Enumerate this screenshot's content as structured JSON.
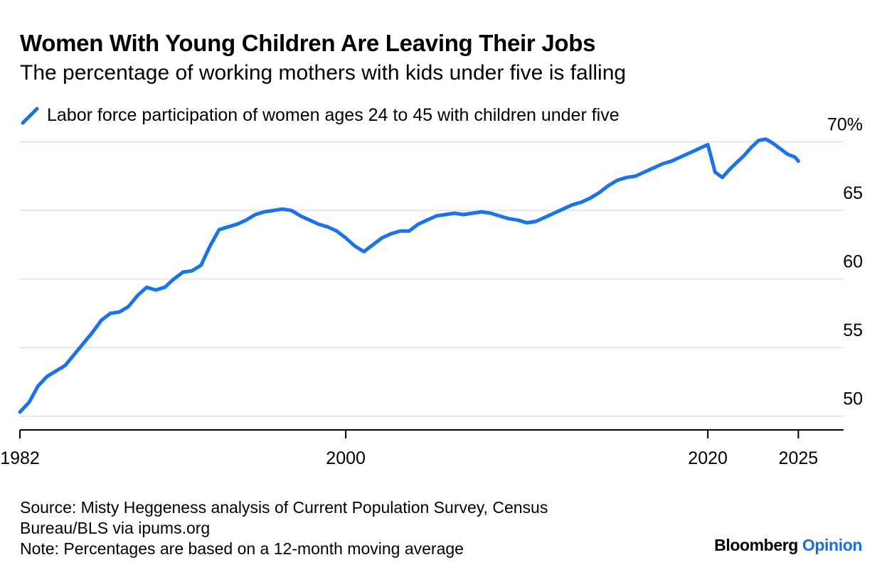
{
  "header": {
    "title": "Women With Young Children Are Leaving Their Jobs",
    "subtitle": "The percentage of working mothers with kids under five is falling"
  },
  "legend": {
    "label": "Labor force participation of women ages 24 to 45 with children under five",
    "icon": "line-swatch-icon",
    "color": "#1a73e8"
  },
  "footer": {
    "source_line1": "Source: Misty Heggeness analysis of Current Population Survey, Census",
    "source_line2": "Bureau/BLS via ipums.org",
    "note": "Note: Percentages are based on a 12-month moving average",
    "brand_name": "Bloomberg",
    "brand_section": "Opinion"
  },
  "chart_data": {
    "type": "line",
    "title": "Women With Young Children Are Leaving Their Jobs",
    "subtitle": "The percentage of working mothers with kids under five is falling",
    "xlabel": "",
    "ylabel": "",
    "y_axis_position": "right",
    "grid": true,
    "legend_position": "top-left",
    "ylim": [
      49,
      70.5
    ],
    "xlim": [
      1982,
      2027.5
    ],
    "x_ticks": [
      {
        "value": 1982,
        "label": "1982"
      },
      {
        "value": 2000,
        "label": "2000"
      },
      {
        "value": 2020,
        "label": "2020"
      },
      {
        "value": 2025,
        "label": "2025"
      }
    ],
    "y_ticks": [
      {
        "value": 50,
        "label": "50"
      },
      {
        "value": 55,
        "label": "55"
      },
      {
        "value": 60,
        "label": "60"
      },
      {
        "value": 65,
        "label": "65"
      },
      {
        "value": 70,
        "label": "70%"
      }
    ],
    "series": [
      {
        "name": "Labor force participation of women ages 24 to 45 with children under five",
        "color": "#1a73e8",
        "x": [
          1982.0,
          1982.5,
          1983.0,
          1983.5,
          1984.0,
          1984.5,
          1985.0,
          1985.5,
          1986.0,
          1986.5,
          1987.0,
          1987.5,
          1988.0,
          1988.5,
          1989.0,
          1989.5,
          1990.0,
          1990.5,
          1991.0,
          1991.5,
          1992.0,
          1992.5,
          1993.0,
          1993.5,
          1994.0,
          1994.5,
          1995.0,
          1995.5,
          1996.0,
          1996.5,
          1997.0,
          1997.5,
          1998.0,
          1998.5,
          1999.0,
          1999.5,
          2000.0,
          2000.5,
          2001.0,
          2001.5,
          2002.0,
          2002.5,
          2003.0,
          2003.5,
          2004.0,
          2004.5,
          2005.0,
          2005.5,
          2006.0,
          2006.5,
          2007.0,
          2007.5,
          2008.0,
          2008.5,
          2009.0,
          2009.5,
          2010.0,
          2010.5,
          2011.0,
          2011.5,
          2012.0,
          2012.5,
          2013.0,
          2013.5,
          2014.0,
          2014.5,
          2015.0,
          2015.5,
          2016.0,
          2016.5,
          2017.0,
          2017.5,
          2018.0,
          2018.5,
          2019.0,
          2019.5,
          2020.0,
          2020.4,
          2020.8,
          2021.2,
          2021.6,
          2022.0,
          2022.4,
          2022.8,
          2023.2,
          2023.6,
          2024.0,
          2024.4,
          2024.8,
          2025.0
        ],
        "values": [
          50.3,
          51.0,
          52.2,
          52.9,
          53.3,
          53.7,
          54.5,
          55.3,
          56.1,
          57.0,
          57.5,
          57.6,
          58.0,
          58.8,
          59.4,
          59.2,
          59.4,
          60.0,
          60.5,
          60.6,
          61.0,
          62.4,
          63.6,
          63.8,
          64.0,
          64.3,
          64.7,
          64.9,
          65.0,
          65.1,
          65.0,
          64.6,
          64.3,
          64.0,
          63.8,
          63.5,
          63.0,
          62.4,
          62.0,
          62.5,
          63.0,
          63.3,
          63.5,
          63.5,
          64.0,
          64.3,
          64.6,
          64.7,
          64.8,
          64.7,
          64.8,
          64.9,
          64.8,
          64.6,
          64.4,
          64.3,
          64.1,
          64.2,
          64.5,
          64.8,
          65.1,
          65.4,
          65.6,
          65.9,
          66.3,
          66.8,
          67.2,
          67.4,
          67.5,
          67.8,
          68.1,
          68.4,
          68.6,
          68.9,
          69.2,
          69.5,
          69.8,
          67.8,
          67.4,
          68.0,
          68.5,
          69.0,
          69.6,
          70.1,
          70.2,
          69.9,
          69.5,
          69.1,
          68.9,
          68.6
        ]
      }
    ]
  }
}
